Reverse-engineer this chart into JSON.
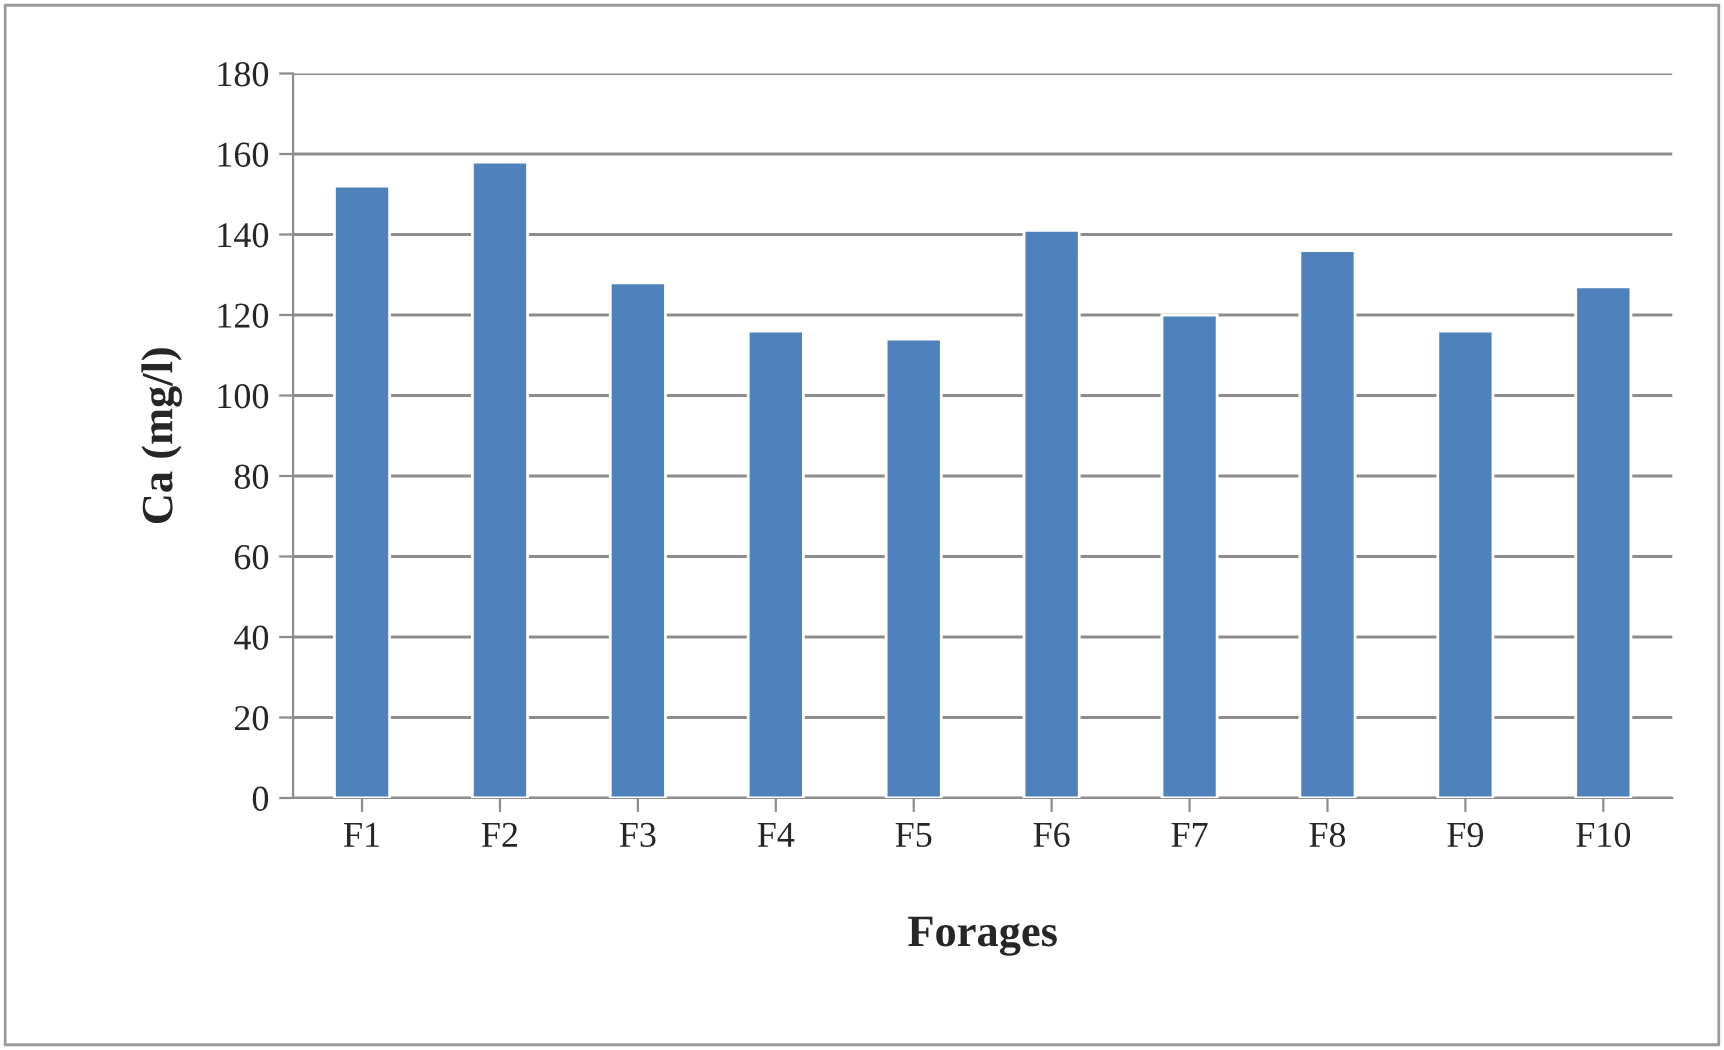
{
  "chart_data": {
    "type": "bar",
    "xlabel": "Forages",
    "ylabel": "Ca (mg/l)",
    "categories": [
      "F1",
      "F2",
      "F3",
      "F4",
      "F5",
      "F6",
      "F7",
      "F8",
      "F9",
      "F10"
    ],
    "values": [
      152,
      158,
      128,
      116,
      114,
      141,
      120,
      136,
      116,
      127
    ],
    "color": "#4f81bd",
    "ylim": [
      0,
      180
    ],
    "yticks": [
      0,
      20,
      40,
      60,
      80,
      100,
      120,
      140,
      160,
      180
    ],
    "grid": "y"
  }
}
